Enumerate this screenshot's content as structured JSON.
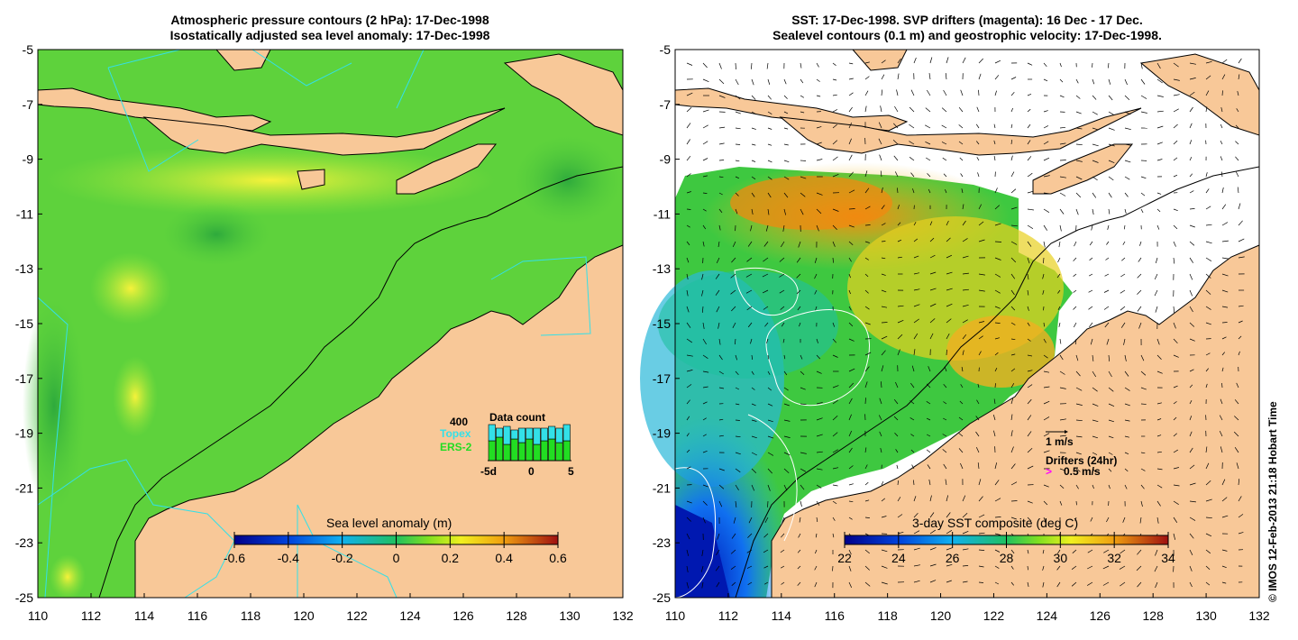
{
  "left_panel": {
    "title_line1": "Atmospheric pressure contours (2 hPa): 17-Dec-1998",
    "title_line2": "Isostatically adjusted sea level anomaly: 17-Dec-1998",
    "colorbar": {
      "label": "Sea level anomaly (m)",
      "ticks": [
        "-0.6",
        "-0.4",
        "-0.2",
        "0",
        "0.2",
        "0.4",
        "0.6"
      ]
    },
    "data_count": {
      "title": "Data count",
      "count_label": "400",
      "topex_label": "Topex",
      "ers_label": "ERS-2",
      "axis_ticks": [
        "-5d",
        "0",
        "5"
      ],
      "topex_color": "#33e0e8",
      "ers_color": "#22dd22"
    }
  },
  "right_panel": {
    "title_line1": "SST: 17-Dec-1998. SVP drifters (magenta): 16 Dec - 17 Dec.",
    "title_line2": "Sealevel contours (0.1 m) and geostrophic velocity: 17-Dec-1998.",
    "colorbar": {
      "label": "3-day SST composite (deg C)",
      "ticks": [
        "22",
        "24",
        "26",
        "28",
        "30",
        "32",
        "34"
      ]
    },
    "velocity_legend": "1 m/s",
    "drifters_label": "Drifters (24hr)",
    "drifters_speed": "0.5 m/s",
    "drifter_color": "#ff00ff"
  },
  "axes": {
    "x_ticks": [
      "110",
      "112",
      "114",
      "116",
      "118",
      "120",
      "122",
      "124",
      "126",
      "128",
      "130",
      "132"
    ],
    "y_ticks": [
      "-5",
      "-7",
      "-9",
      "-11",
      "-13",
      "-15",
      "-17",
      "-19",
      "-21",
      "-23",
      "-25"
    ]
  },
  "colors": {
    "land": "#f8c898",
    "ocean_green": "#5ed23c",
    "no_data": "#ffffff"
  },
  "credit": "© IMOS 12-Feb-2013 21:18 Hobart Time"
}
